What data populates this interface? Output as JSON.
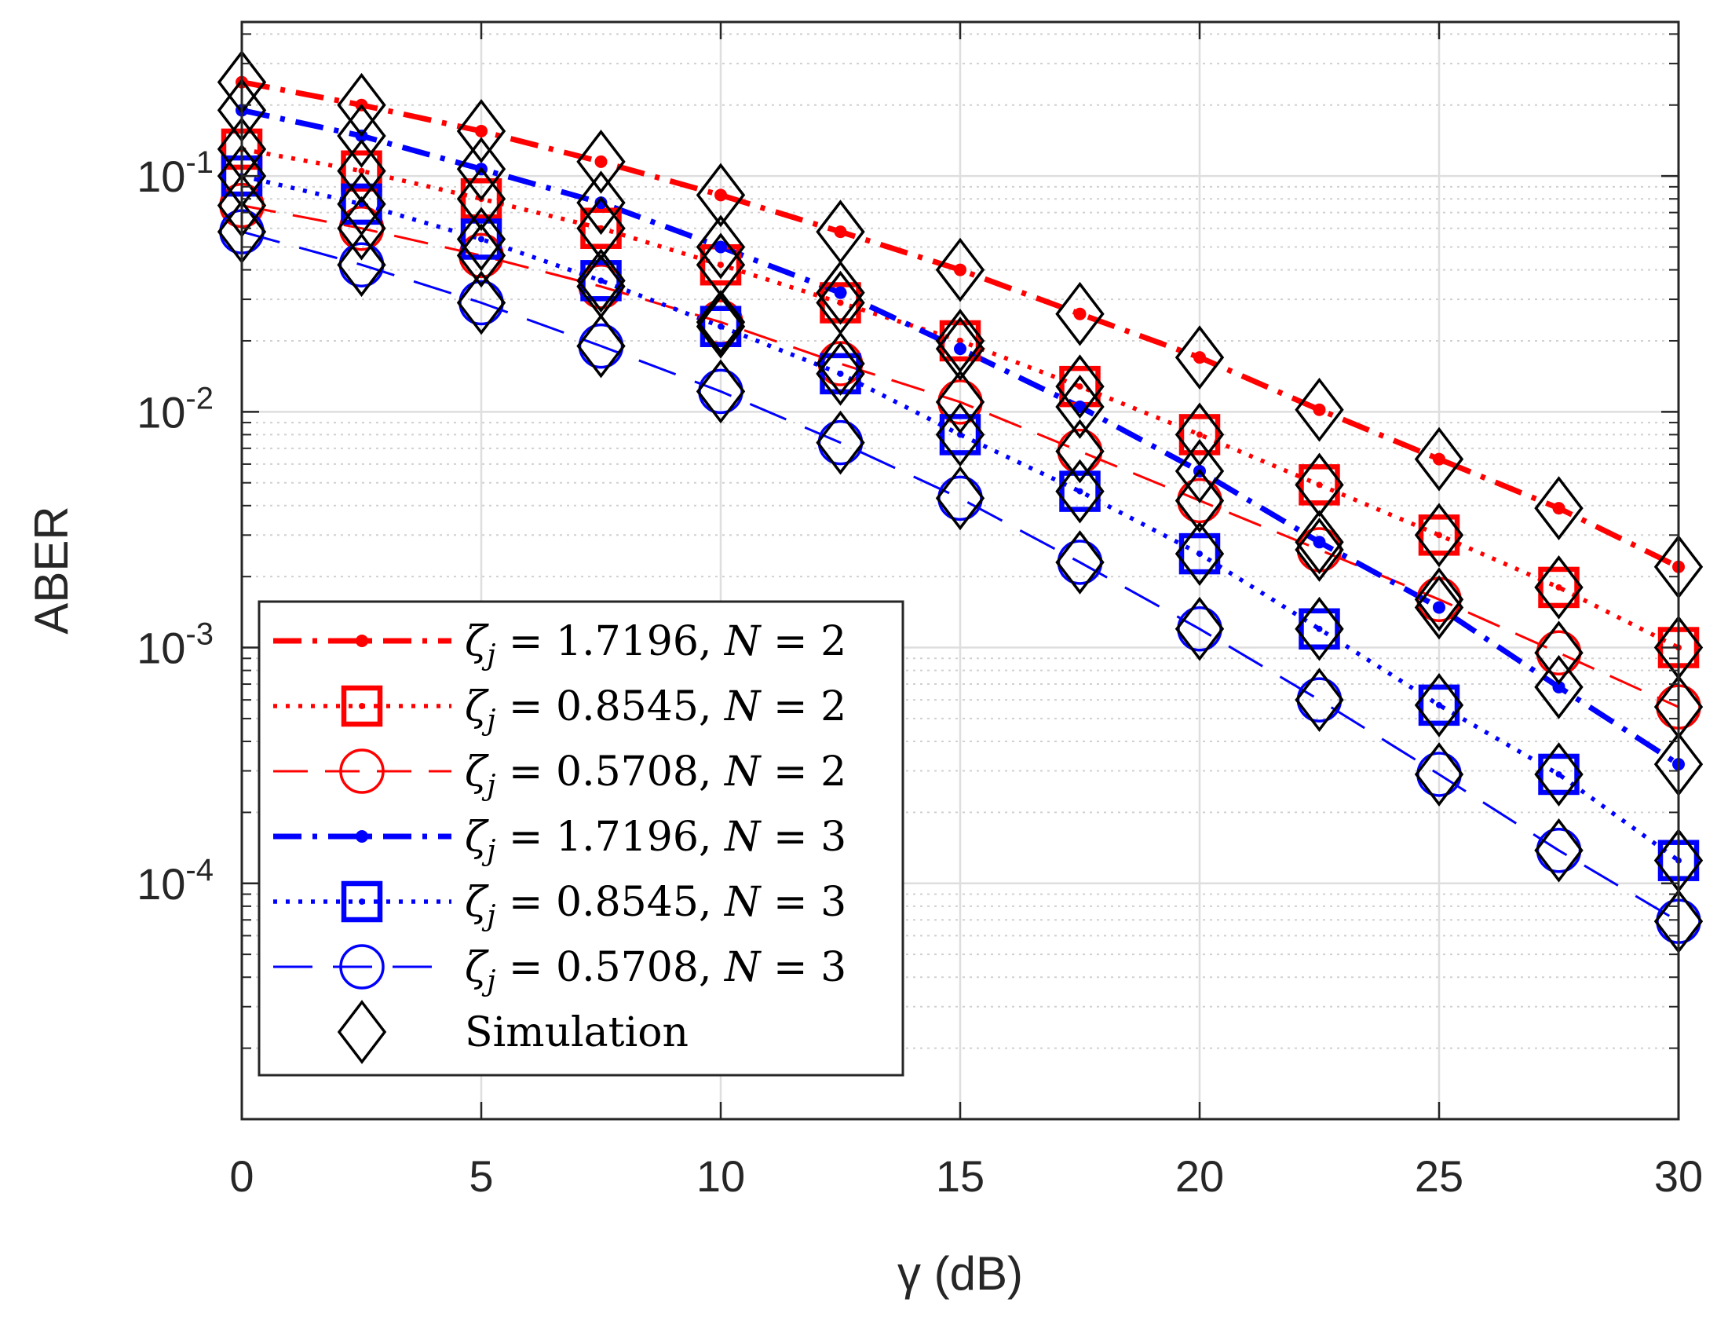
{
  "chart_data": {
    "type": "line",
    "xscale": "linear",
    "yscale": "log",
    "xlim": [
      0,
      30
    ],
    "ylim": [
      1e-05,
      0.45
    ],
    "xlabel": "γ (dB)",
    "ylabel": "ABER",
    "grid": true,
    "legend_position": "bottom-left",
    "x_ticks": [
      0,
      5,
      10,
      15,
      20,
      25,
      30
    ],
    "y_ticks": [
      {
        "value": 0.1,
        "base": "10",
        "exp": "-1"
      },
      {
        "value": 0.01,
        "base": "10",
        "exp": "-2"
      },
      {
        "value": 0.001,
        "base": "10",
        "exp": "-3"
      },
      {
        "value": 0.0001,
        "base": "10",
        "exp": "-4"
      }
    ],
    "x": [
      0,
      2.5,
      5,
      7.5,
      10,
      12.5,
      15,
      17.5,
      20,
      22.5,
      25,
      27.5,
      30
    ],
    "series": [
      {
        "name": "ζj = 1.7196, N = 2",
        "label_zeta": "1.7196",
        "label_N": "2",
        "color": "#ff0000",
        "dash": "dashdot",
        "marker": "dot",
        "values": [
          0.25,
          0.2,
          0.155,
          0.115,
          0.083,
          0.058,
          0.04,
          0.026,
          0.017,
          0.0102,
          0.0063,
          0.0039,
          0.0022
        ]
      },
      {
        "name": "ζj = 0.8545, N = 2",
        "label_zeta": "0.8545",
        "label_N": "2",
        "color": "#ff0000",
        "dash": "dotted",
        "marker": "square-dot",
        "values": [
          0.13,
          0.105,
          0.08,
          0.06,
          0.042,
          0.029,
          0.02,
          0.0128,
          0.008,
          0.0049,
          0.003,
          0.0018,
          0.001
        ]
      },
      {
        "name": "ζj = 0.5708, N = 2",
        "label_zeta": "0.5708",
        "label_N": "2",
        "color": "#ff0000",
        "dash": "dashed",
        "marker": "circle-line",
        "values": [
          0.075,
          0.06,
          0.046,
          0.034,
          0.024,
          0.016,
          0.011,
          0.0068,
          0.0042,
          0.0026,
          0.0016,
          0.00095,
          0.00056
        ]
      },
      {
        "name": "ζj = 1.7196, N = 3",
        "label_zeta": "1.7196",
        "label_N": "3",
        "color": "#0000ff",
        "dash": "dashdot",
        "marker": "dot",
        "values": [
          0.19,
          0.148,
          0.107,
          0.077,
          0.05,
          0.032,
          0.0185,
          0.0105,
          0.0056,
          0.0028,
          0.00148,
          0.00068,
          0.00032
        ]
      },
      {
        "name": "ζj = 0.8545, N = 3",
        "label_zeta": "0.8545",
        "label_N": "3",
        "color": "#0000ff",
        "dash": "dotted",
        "marker": "square-dot",
        "values": [
          0.1,
          0.076,
          0.054,
          0.036,
          0.023,
          0.0145,
          0.008,
          0.0046,
          0.0025,
          0.0012,
          0.00057,
          0.00029,
          0.000125
        ]
      },
      {
        "name": "ζj = 0.5708, N = 3",
        "label_zeta": "0.5708",
        "label_N": "3",
        "color": "#0000ff",
        "dash": "longdash",
        "marker": "circle-line",
        "values": [
          0.058,
          0.042,
          0.029,
          0.019,
          0.0122,
          0.0074,
          0.0043,
          0.0023,
          0.0012,
          0.0006,
          0.00029,
          0.000138,
          6.9e-05
        ]
      }
    ],
    "simulation": {
      "name": "Simulation",
      "color": "#000000",
      "marker": "diamond",
      "source_series": [
        0,
        1,
        2,
        3,
        4,
        5
      ]
    }
  }
}
